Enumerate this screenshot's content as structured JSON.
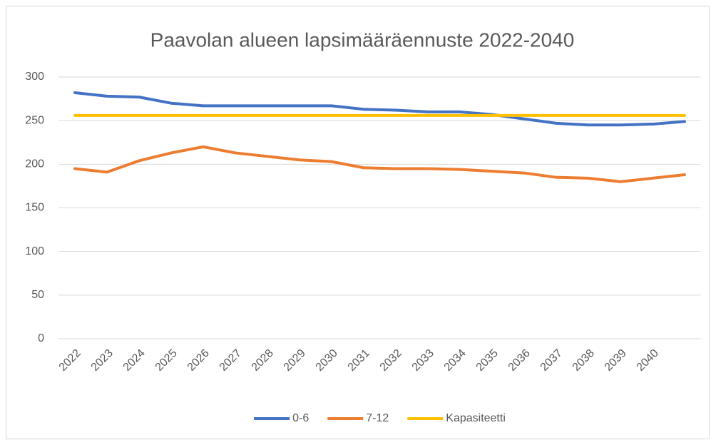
{
  "chart_data": {
    "type": "line",
    "title": "Paavolan alueen lapsimääräennuste 2022-2040",
    "categories": [
      "2022",
      "2023",
      "2024",
      "2025",
      "2026",
      "2027",
      "2028",
      "2029",
      "2030",
      "2031",
      "2032",
      "2033",
      "2034",
      "2035",
      "2036",
      "2037",
      "2038",
      "2039",
      "2040",
      null
    ],
    "series": [
      {
        "name": "0-6",
        "color": "#4472c4",
        "values": [
          282,
          278,
          277,
          270,
          267,
          267,
          267,
          267,
          267,
          263,
          262,
          260,
          260,
          257,
          252,
          247,
          245,
          245,
          246,
          249
        ]
      },
      {
        "name": "7-12",
        "color": "#ed7d31",
        "values": [
          195,
          191,
          204,
          213,
          220,
          213,
          209,
          205,
          203,
          196,
          195,
          195,
          194,
          192,
          190,
          185,
          184,
          180,
          184,
          188
        ]
      },
      {
        "name": "Kapasiteetti",
        "color": "#ffc000",
        "values": [
          256,
          256,
          256,
          256,
          256,
          256,
          256,
          256,
          256,
          256,
          256,
          256,
          256,
          256,
          256,
          256,
          256,
          256,
          256,
          256
        ]
      }
    ],
    "ylim": [
      0,
      300
    ],
    "yticks": [
      0,
      50,
      100,
      150,
      200,
      250,
      300
    ],
    "grid": true,
    "legend": "bottom"
  }
}
